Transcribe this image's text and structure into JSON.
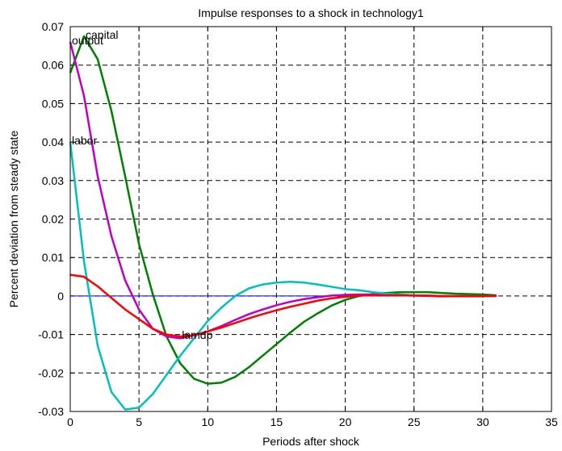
{
  "chart_data": {
    "type": "line",
    "title": "Impulse responses to a shock in technology1",
    "xlabel": "Periods after shock",
    "ylabel": "Percent deviation from steady state",
    "xlim": [
      0,
      35
    ],
    "ylim": [
      -0.03,
      0.07
    ],
    "xticks": [
      "0",
      "5",
      "10",
      "15",
      "20",
      "25",
      "30",
      "35"
    ],
    "yticks": [
      "-0.03",
      "-0.02",
      "-0.01",
      "0",
      "0.01",
      "0.02",
      "0.03",
      "0.04",
      "0.05",
      "0.06",
      "0.07"
    ],
    "grid": true,
    "zero_line_color": "#0000ff",
    "x": [
      0,
      1,
      2,
      3,
      4,
      5,
      6,
      7,
      8,
      9,
      10,
      11,
      12,
      13,
      14,
      15,
      16,
      17,
      18,
      19,
      20,
      21,
      22,
      23,
      24,
      25,
      26,
      27,
      28,
      29,
      30,
      31
    ],
    "series": [
      {
        "name": "capital",
        "color": "#008000",
        "values": [
          0.058,
          0.0675,
          0.0615,
          0.048,
          0.031,
          0.0135,
          0.0005,
          -0.0105,
          -0.0175,
          -0.0215,
          -0.0228,
          -0.0225,
          -0.021,
          -0.0185,
          -0.0155,
          -0.0125,
          -0.0095,
          -0.0067,
          -0.0045,
          -0.0025,
          -0.001,
          0.0,
          0.0005,
          0.0008,
          0.001,
          0.001,
          0.001,
          0.0008,
          0.0006,
          0.0005,
          0.0004,
          0.0002
        ]
      },
      {
        "name": "output",
        "color": "#bf00bf",
        "values": [
          0.066,
          0.052,
          0.031,
          0.0155,
          0.004,
          -0.0035,
          -0.0085,
          -0.0105,
          -0.011,
          -0.0102,
          -0.0092,
          -0.0078,
          -0.0062,
          -0.0047,
          -0.0035,
          -0.0024,
          -0.0015,
          -0.0008,
          -0.0003,
          0.0001,
          0.0003,
          0.0004,
          0.0004,
          0.0003,
          0.0002,
          0.0001,
          0.0,
          -0.0001,
          -0.0001,
          -0.0001,
          -0.0001,
          0.0
        ]
      },
      {
        "name": "labor",
        "color": "#00bfbf",
        "values": [
          0.04,
          0.009,
          -0.013,
          -0.025,
          -0.0295,
          -0.029,
          -0.0255,
          -0.0205,
          -0.0155,
          -0.011,
          -0.0065,
          -0.003,
          0.0,
          0.002,
          0.003,
          0.0035,
          0.0037,
          0.0035,
          0.003,
          0.0024,
          0.0018,
          0.0015,
          0.001,
          0.0006,
          0.0004,
          0.0002,
          0.0001,
          0.0,
          -0.0001,
          -0.0001,
          -0.0001,
          0.0
        ]
      },
      {
        "name": "lamdp",
        "color": "#ff0000",
        "values": [
          0.0055,
          0.005,
          0.0025,
          -0.0005,
          -0.0035,
          -0.006,
          -0.0085,
          -0.01,
          -0.0105,
          -0.0102,
          -0.0092,
          -0.0082,
          -0.007,
          -0.0058,
          -0.0047,
          -0.0037,
          -0.0028,
          -0.002,
          -0.0012,
          -0.0006,
          -0.0002,
          0.0001,
          0.0002,
          0.0002,
          0.0002,
          0.0001,
          0.0001,
          0.0,
          0.0,
          0.0,
          0.0,
          0.0
        ]
      }
    ],
    "annotations": [
      {
        "text": "capital",
        "series": "capital",
        "x": 1,
        "y": 0.0675
      },
      {
        "text": "output",
        "series": "output",
        "x": 0,
        "y": 0.066
      },
      {
        "text": "labor",
        "series": "labor",
        "x": 0,
        "y": 0.04
      },
      {
        "text": "lamdp",
        "series": "lamdp",
        "x": 8,
        "y": -0.0105
      }
    ]
  }
}
